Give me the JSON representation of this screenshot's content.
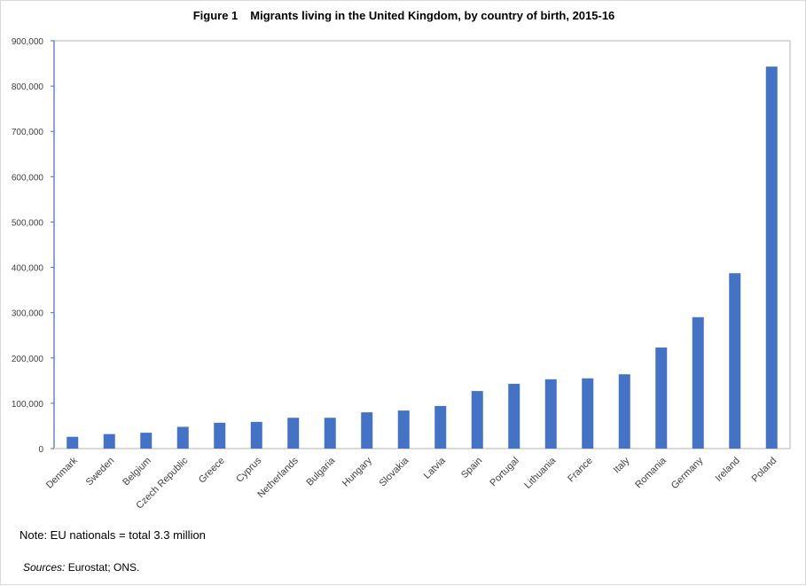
{
  "chart_data": {
    "type": "bar",
    "title_prefix": "Figure 1",
    "title": "Migrants living in the United Kingdom, by country of birth, 2015-16",
    "xlabel": "",
    "ylabel": "",
    "ylim": [
      0,
      900000
    ],
    "yticks": [
      "0",
      "100,000",
      "200,000",
      "300,000",
      "400,000",
      "500,000",
      "600,000",
      "700,000",
      "800,000",
      "900,000"
    ],
    "grid": false,
    "bar_color": "#4472c4",
    "categories": [
      "Denmark",
      "Sweden",
      "Belgium",
      "Czech Republic",
      "Greece",
      "Cyprus",
      "Netherlands",
      "Bulgaria",
      "Hungary",
      "Slovakia",
      "Latvia",
      "Spain",
      "Portugal",
      "Lithuania",
      "France",
      "Italy",
      "Romania",
      "Germany",
      "Ireland",
      "Poland"
    ],
    "values": [
      26000,
      32000,
      35000,
      48000,
      57000,
      59000,
      68000,
      68000,
      80000,
      84000,
      94000,
      127000,
      143000,
      153000,
      155000,
      164000,
      223000,
      290000,
      387000,
      843000
    ]
  },
  "note": "Note:  EU nationals = total  3.3 million",
  "sources_label": "Sources:",
  "sources_text": " Eurostat; ONS."
}
